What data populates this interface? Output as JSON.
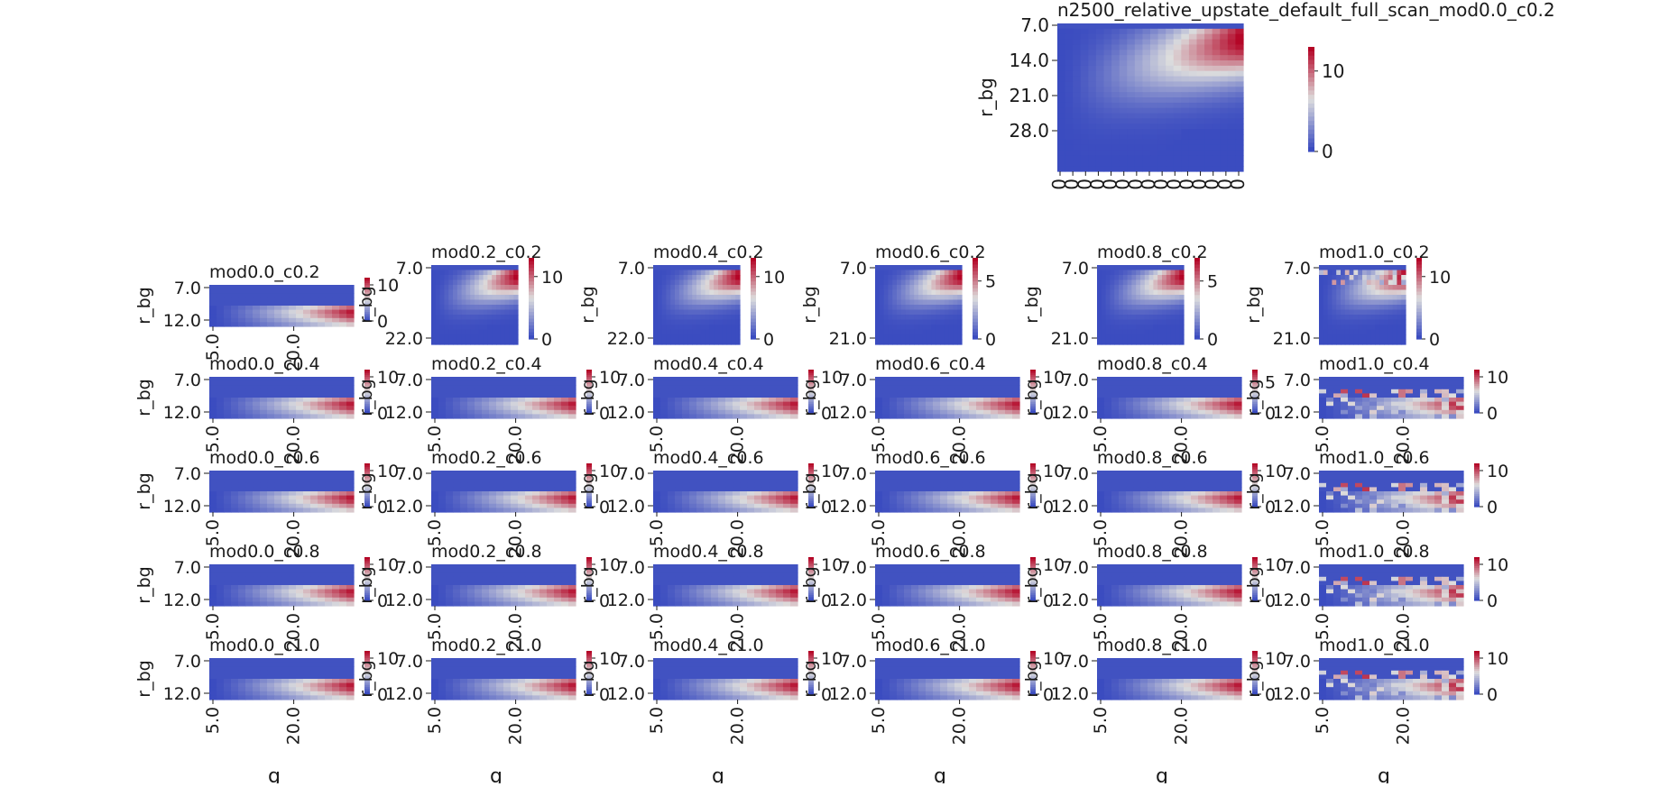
{
  "figure": {
    "title": "n2500_relative_upstate_default_full_scan_mod0.0_c0.2"
  },
  "colors": {
    "low": "#3b4cc0",
    "mid": "#dddddd",
    "high": "#b40426",
    "axis": "#1a1a1a"
  },
  "chart_data": [
    {
      "type": "heatmap",
      "title": "n2500_relative_upstate_default_full_scan_mod0.0_c0.2",
      "ylabel": "r_bg",
      "xlabel": "",
      "ytick_labels": [
        "7.0",
        "14.0",
        "21.0",
        "28.0"
      ],
      "xtick_labels": [
        "0",
        "0",
        "0",
        "0",
        "0",
        "0",
        "0",
        "0",
        "0",
        "0",
        "0",
        "0",
        "0",
        "0",
        "0"
      ],
      "colorbar_ticks": [
        "0",
        "10"
      ],
      "colorbar_range": [
        0,
        13
      ],
      "pattern": "big"
    },
    {
      "type": "heatmap",
      "title": "mod0.0_c0.2",
      "ylabel": "r_bg",
      "xlabel": "",
      "ytick_labels": [
        "7.0",
        "12.0"
      ],
      "xtick_labels": [
        "5.0",
        "20.0"
      ],
      "colorbar_ticks": [
        "0",
        "10"
      ],
      "colorbar_range": [
        0,
        12
      ],
      "pattern": "short"
    },
    {
      "type": "heatmap",
      "title": "mod0.2_c0.2",
      "ylabel": "r_bg",
      "xlabel": "",
      "ytick_labels": [
        "7.0",
        "22.0"
      ],
      "xtick_labels": [],
      "colorbar_ticks": [
        "0",
        "10"
      ],
      "colorbar_range": [
        0,
        13
      ],
      "pattern": "tall"
    },
    {
      "type": "heatmap",
      "title": "mod0.4_c0.2",
      "ylabel": "r_bg",
      "xlabel": "",
      "ytick_labels": [
        "7.0",
        "22.0"
      ],
      "xtick_labels": [],
      "colorbar_ticks": [
        "0",
        "10"
      ],
      "colorbar_range": [
        0,
        13
      ],
      "pattern": "tall"
    },
    {
      "type": "heatmap",
      "title": "mod0.6_c0.2",
      "ylabel": "r_bg",
      "xlabel": "",
      "ytick_labels": [
        "7.0",
        "21.0"
      ],
      "xtick_labels": [],
      "colorbar_ticks": [
        "0",
        "5"
      ],
      "colorbar_range": [
        0,
        7
      ],
      "pattern": "tall"
    },
    {
      "type": "heatmap",
      "title": "mod0.8_c0.2",
      "ylabel": "r_bg",
      "xlabel": "",
      "ytick_labels": [
        "7.0",
        "21.0"
      ],
      "xtick_labels": [],
      "colorbar_ticks": [
        "0",
        "5"
      ],
      "colorbar_range": [
        0,
        7
      ],
      "pattern": "tall"
    },
    {
      "type": "heatmap",
      "title": "mod1.0_c0.2",
      "ylabel": "r_bg",
      "xlabel": "",
      "ytick_labels": [
        "7.0",
        "21.0"
      ],
      "xtick_labels": [],
      "colorbar_ticks": [
        "0",
        "10"
      ],
      "colorbar_range": [
        0,
        13
      ],
      "pattern": "tall-noisy"
    },
    {
      "type": "heatmap",
      "title": "mod0.0_c0.4",
      "ylabel": "r_bg",
      "xlabel": "",
      "ytick_labels": [
        "7.0",
        "12.0"
      ],
      "xtick_labels": [
        "5.0",
        "20.0"
      ],
      "colorbar_ticks": [
        "0",
        "10"
      ],
      "colorbar_range": [
        0,
        12
      ],
      "pattern": "short"
    },
    {
      "type": "heatmap",
      "title": "mod0.2_c0.4",
      "ylabel": "r_bg",
      "xlabel": "",
      "ytick_labels": [
        "7.0",
        "12.0"
      ],
      "xtick_labels": [
        "5.0",
        "20.0"
      ],
      "colorbar_ticks": [
        "0",
        "10"
      ],
      "colorbar_range": [
        0,
        12
      ],
      "pattern": "short"
    },
    {
      "type": "heatmap",
      "title": "mod0.4_c0.4",
      "ylabel": "r_bg",
      "xlabel": "",
      "ytick_labels": [
        "7.0",
        "12.0"
      ],
      "xtick_labels": [
        "5.0",
        "20.0"
      ],
      "colorbar_ticks": [
        "0",
        "10"
      ],
      "colorbar_range": [
        0,
        12
      ],
      "pattern": "short"
    },
    {
      "type": "heatmap",
      "title": "mod0.6_c0.4",
      "ylabel": "r_bg",
      "xlabel": "",
      "ytick_labels": [
        "7.0",
        "12.0"
      ],
      "xtick_labels": [
        "5.0",
        "20.0"
      ],
      "colorbar_ticks": [
        "0",
        "10"
      ],
      "colorbar_range": [
        0,
        12
      ],
      "pattern": "short"
    },
    {
      "type": "heatmap",
      "title": "mod0.8_c0.4",
      "ylabel": "r_bg",
      "xlabel": "",
      "ytick_labels": [
        "7.0",
        "12.0"
      ],
      "xtick_labels": [
        "5.0",
        "20.0"
      ],
      "colorbar_ticks": [
        "0",
        "5"
      ],
      "colorbar_range": [
        0,
        7
      ],
      "pattern": "short"
    },
    {
      "type": "heatmap",
      "title": "mod1.0_c0.4",
      "ylabel": "r_bg",
      "xlabel": "",
      "ytick_labels": [
        "7.0",
        "12.0"
      ],
      "xtick_labels": [
        "5.0",
        "20.0"
      ],
      "colorbar_ticks": [
        "0",
        "10"
      ],
      "colorbar_range": [
        0,
        12
      ],
      "pattern": "short-noisy"
    },
    {
      "type": "heatmap",
      "title": "mod0.0_c0.6",
      "ylabel": "r_bg",
      "xlabel": "",
      "ytick_labels": [
        "7.0",
        "12.0"
      ],
      "xtick_labels": [
        "5.0",
        "20.0"
      ],
      "colorbar_ticks": [
        "0",
        "10"
      ],
      "colorbar_range": [
        0,
        12
      ],
      "pattern": "short"
    },
    {
      "type": "heatmap",
      "title": "mod0.2_c0.6",
      "ylabel": "r_bg",
      "xlabel": "",
      "ytick_labels": [
        "7.0",
        "12.0"
      ],
      "xtick_labels": [
        "5.0",
        "20.0"
      ],
      "colorbar_ticks": [
        "0",
        "10"
      ],
      "colorbar_range": [
        0,
        12
      ],
      "pattern": "short"
    },
    {
      "type": "heatmap",
      "title": "mod0.4_c0.6",
      "ylabel": "r_bg",
      "xlabel": "",
      "ytick_labels": [
        "7.0",
        "12.0"
      ],
      "xtick_labels": [
        "5.0",
        "20.0"
      ],
      "colorbar_ticks": [
        "0",
        "10"
      ],
      "colorbar_range": [
        0,
        12
      ],
      "pattern": "short"
    },
    {
      "type": "heatmap",
      "title": "mod0.6_c0.6",
      "ylabel": "r_bg",
      "xlabel": "",
      "ytick_labels": [
        "7.0",
        "12.0"
      ],
      "xtick_labels": [
        "5.0",
        "20.0"
      ],
      "colorbar_ticks": [
        "0",
        "10"
      ],
      "colorbar_range": [
        0,
        12
      ],
      "pattern": "short"
    },
    {
      "type": "heatmap",
      "title": "mod0.8_c0.6",
      "ylabel": "r_bg",
      "xlabel": "",
      "ytick_labels": [
        "7.0",
        "12.0"
      ],
      "xtick_labels": [
        "5.0",
        "20.0"
      ],
      "colorbar_ticks": [
        "0",
        "10"
      ],
      "colorbar_range": [
        0,
        12
      ],
      "pattern": "short"
    },
    {
      "type": "heatmap",
      "title": "mod1.0_c0.6",
      "ylabel": "r_bg",
      "xlabel": "",
      "ytick_labels": [
        "7.0",
        "12.0"
      ],
      "xtick_labels": [
        "5.0",
        "20.0"
      ],
      "colorbar_ticks": [
        "0",
        "10"
      ],
      "colorbar_range": [
        0,
        12
      ],
      "pattern": "short-noisy"
    },
    {
      "type": "heatmap",
      "title": "mod0.0_c0.8",
      "ylabel": "r_bg",
      "xlabel": "",
      "ytick_labels": [
        "7.0",
        "12.0"
      ],
      "xtick_labels": [
        "5.0",
        "20.0"
      ],
      "colorbar_ticks": [
        "0",
        "10"
      ],
      "colorbar_range": [
        0,
        12
      ],
      "pattern": "short"
    },
    {
      "type": "heatmap",
      "title": "mod0.2_c0.8",
      "ylabel": "r_bg",
      "xlabel": "",
      "ytick_labels": [
        "7.0",
        "12.0"
      ],
      "xtick_labels": [
        "5.0",
        "20.0"
      ],
      "colorbar_ticks": [
        "0",
        "10"
      ],
      "colorbar_range": [
        0,
        12
      ],
      "pattern": "short"
    },
    {
      "type": "heatmap",
      "title": "mod0.4_c0.8",
      "ylabel": "r_bg",
      "xlabel": "",
      "ytick_labels": [
        "7.0",
        "12.0"
      ],
      "xtick_labels": [
        "5.0",
        "20.0"
      ],
      "colorbar_ticks": [
        "0",
        "10"
      ],
      "colorbar_range": [
        0,
        12
      ],
      "pattern": "short"
    },
    {
      "type": "heatmap",
      "title": "mod0.6_c0.8",
      "ylabel": "r_bg",
      "xlabel": "",
      "ytick_labels": [
        "7.0",
        "12.0"
      ],
      "xtick_labels": [
        "5.0",
        "20.0"
      ],
      "colorbar_ticks": [
        "0",
        "10"
      ],
      "colorbar_range": [
        0,
        12
      ],
      "pattern": "short"
    },
    {
      "type": "heatmap",
      "title": "mod0.8_c0.8",
      "ylabel": "r_bg",
      "xlabel": "",
      "ytick_labels": [
        "7.0",
        "12.0"
      ],
      "xtick_labels": [
        "5.0",
        "20.0"
      ],
      "colorbar_ticks": [
        "0",
        "10"
      ],
      "colorbar_range": [
        0,
        12
      ],
      "pattern": "short"
    },
    {
      "type": "heatmap",
      "title": "mod1.0_c0.8",
      "ylabel": "r_bg",
      "xlabel": "",
      "ytick_labels": [
        "7.0",
        "12.0"
      ],
      "xtick_labels": [
        "5.0",
        "20.0"
      ],
      "colorbar_ticks": [
        "0",
        "10"
      ],
      "colorbar_range": [
        0,
        12
      ],
      "pattern": "short-noisy"
    },
    {
      "type": "heatmap",
      "title": "mod0.0_c1.0",
      "ylabel": "r_bg",
      "xlabel": "g",
      "ytick_labels": [
        "7.0",
        "12.0"
      ],
      "xtick_labels": [
        "5.0",
        "20.0"
      ],
      "colorbar_ticks": [
        "0",
        "10"
      ],
      "colorbar_range": [
        0,
        12
      ],
      "pattern": "short"
    },
    {
      "type": "heatmap",
      "title": "mod0.2_c1.0",
      "ylabel": "r_bg",
      "xlabel": "g",
      "ytick_labels": [
        "7.0",
        "12.0"
      ],
      "xtick_labels": [
        "5.0",
        "20.0"
      ],
      "colorbar_ticks": [
        "0",
        "10"
      ],
      "colorbar_range": [
        0,
        12
      ],
      "pattern": "short"
    },
    {
      "type": "heatmap",
      "title": "mod0.4_c1.0",
      "ylabel": "r_bg",
      "xlabel": "g",
      "ytick_labels": [
        "7.0",
        "12.0"
      ],
      "xtick_labels": [
        "5.0",
        "20.0"
      ],
      "colorbar_ticks": [
        "0",
        "10"
      ],
      "colorbar_range": [
        0,
        12
      ],
      "pattern": "short"
    },
    {
      "type": "heatmap",
      "title": "mod0.6_c1.0",
      "ylabel": "r_bg",
      "xlabel": "g",
      "ytick_labels": [
        "7.0",
        "12.0"
      ],
      "xtick_labels": [
        "5.0",
        "20.0"
      ],
      "colorbar_ticks": [
        "0",
        "10"
      ],
      "colorbar_range": [
        0,
        12
      ],
      "pattern": "short"
    },
    {
      "type": "heatmap",
      "title": "mod0.8_c1.0",
      "ylabel": "r_bg",
      "xlabel": "g",
      "ytick_labels": [
        "7.0",
        "12.0"
      ],
      "xtick_labels": [
        "5.0",
        "20.0"
      ],
      "colorbar_ticks": [
        "0",
        "10"
      ],
      "colorbar_range": [
        0,
        12
      ],
      "pattern": "short"
    },
    {
      "type": "heatmap",
      "title": "mod1.0_c1.0",
      "ylabel": "r_bg",
      "xlabel": "g",
      "ytick_labels": [
        "7.0",
        "12.0"
      ],
      "xtick_labels": [
        "5.0",
        "20.0"
      ],
      "colorbar_ticks": [
        "0",
        "10"
      ],
      "colorbar_range": [
        0,
        12
      ],
      "pattern": "short-noisy"
    }
  ]
}
